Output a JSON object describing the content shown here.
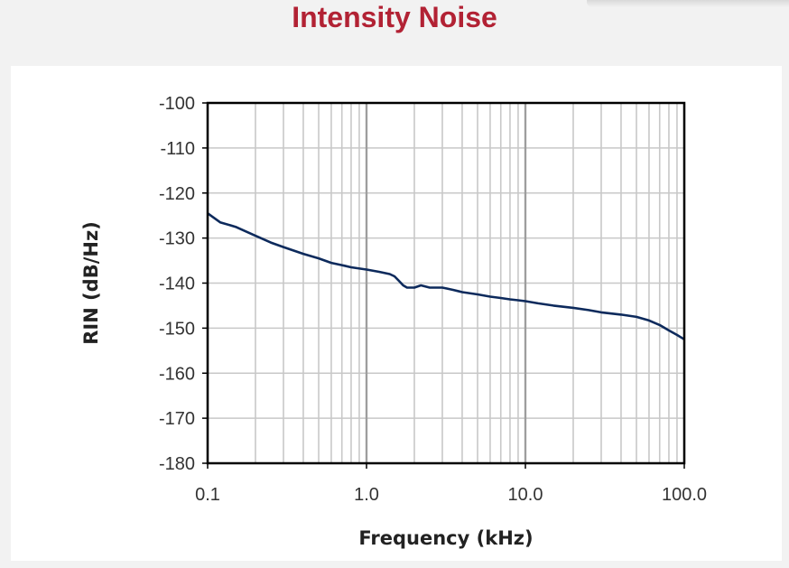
{
  "page": {
    "title": "Intensity Noise"
  },
  "chart_data": {
    "type": "line",
    "title": "",
    "xlabel": "Frequency (kHz)",
    "ylabel": "RIN (dB/Hz)",
    "xscale": "log",
    "xlim": [
      0.1,
      100.0
    ],
    "ylim": [
      -180,
      -100
    ],
    "xticks": [
      0.1,
      1.0,
      10.0,
      100.0
    ],
    "xtick_labels": [
      "0.1",
      "1.0",
      "10.0",
      "100.0"
    ],
    "yticks": [
      -100,
      -110,
      -120,
      -130,
      -140,
      -150,
      -160,
      -170,
      -180
    ],
    "ytick_labels": [
      "-100",
      "-110",
      "-120",
      "-130",
      "-140",
      "-150",
      "-160",
      "-170",
      "-180"
    ],
    "grid": true,
    "legend": "none",
    "series_color": "#0d2a5c",
    "series": [
      {
        "x": [
          0.1,
          0.12,
          0.15,
          0.2,
          0.25,
          0.3,
          0.4,
          0.5,
          0.6,
          0.7,
          0.8,
          1.0,
          1.2,
          1.4,
          1.5,
          1.6,
          1.7,
          1.8,
          2.0,
          2.2,
          2.5,
          2.8,
          3.0,
          3.2,
          3.5,
          4.0,
          5.0,
          6.0,
          7.0,
          8.0,
          9.0,
          10.0,
          12.0,
          15.0,
          20.0,
          25.0,
          30.0,
          40.0,
          50.0,
          60.0,
          70.0,
          80.0,
          90.0,
          100.0
        ],
        "y": [
          -124.5,
          -126.5,
          -127.5,
          -129.5,
          -131,
          -132,
          -133.5,
          -134.5,
          -135.5,
          -136,
          -136.5,
          -137,
          -137.5,
          -138,
          -138.5,
          -139.5,
          -140.5,
          -141,
          -141,
          -140.5,
          -141,
          -141,
          -141,
          -141.2,
          -141.5,
          -142,
          -142.5,
          -143,
          -143.3,
          -143.6,
          -143.8,
          -144,
          -144.5,
          -145,
          -145.5,
          -146,
          -146.5,
          -147,
          -147.5,
          -148.3,
          -149.3,
          -150.5,
          -151.5,
          -152.5
        ]
      }
    ]
  }
}
